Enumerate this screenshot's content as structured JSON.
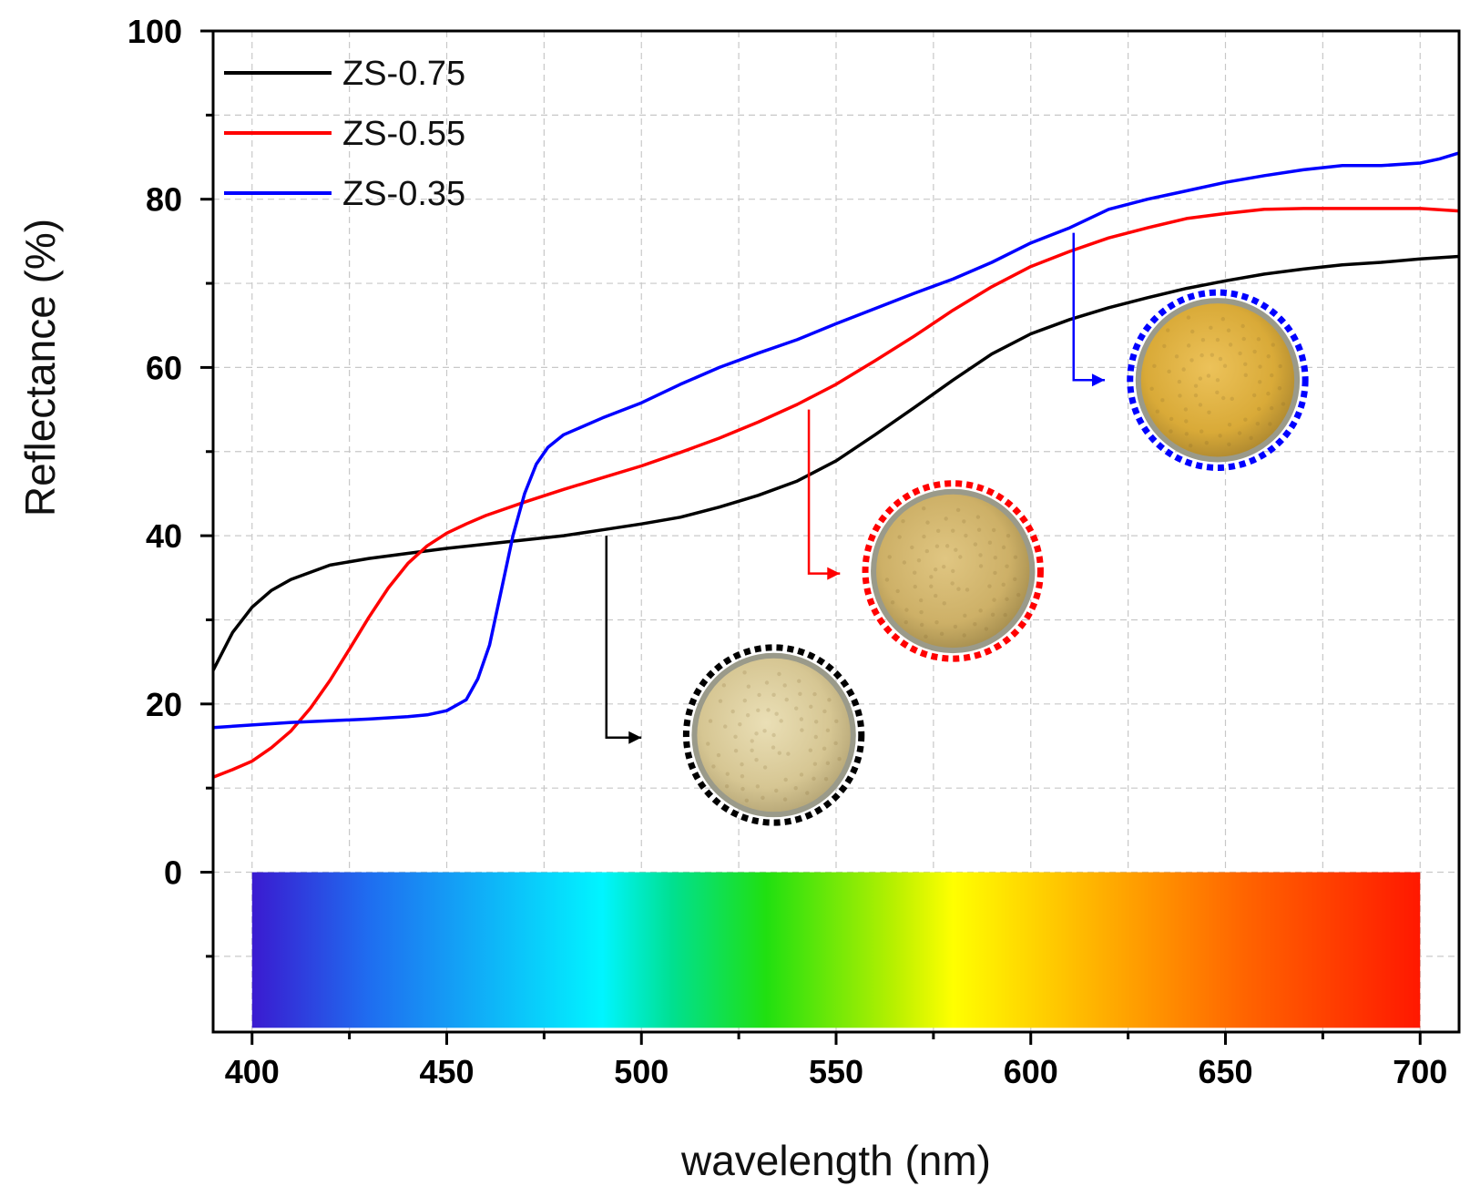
{
  "chart_data": {
    "type": "line",
    "xlabel": "wavelength (nm)",
    "ylabel": "Reflectance (%)",
    "xlim": [
      390,
      710
    ],
    "ylim": [
      -19,
      100
    ],
    "x_ticks": [
      400,
      450,
      500,
      550,
      600,
      650,
      700
    ],
    "y_ticks": [
      0,
      20,
      40,
      60,
      80,
      100
    ],
    "grid": true,
    "legend_position": "top-left",
    "spectrum_bar": {
      "x_range": [
        400,
        700
      ],
      "y_range": [
        -18.5,
        0
      ]
    },
    "series": [
      {
        "name": "ZS-0.75",
        "color": "#000000",
        "x": [
          390,
          395,
          400,
          405,
          410,
          420,
          430,
          440,
          450,
          460,
          470,
          480,
          490,
          500,
          510,
          520,
          530,
          540,
          550,
          560,
          570,
          580,
          590,
          600,
          610,
          620,
          630,
          640,
          650,
          660,
          670,
          680,
          690,
          700,
          710
        ],
        "y": [
          24,
          28.5,
          31.5,
          33.5,
          34.8,
          36.5,
          37.3,
          37.9,
          38.5,
          39,
          39.5,
          40,
          40.7,
          41.4,
          42.2,
          43.4,
          44.8,
          46.5,
          48.9,
          52,
          55.2,
          58.5,
          61.6,
          64,
          65.7,
          67.1,
          68.3,
          69.4,
          70.3,
          71.1,
          71.7,
          72.2,
          72.5,
          72.9,
          73.2
        ]
      },
      {
        "name": "ZS-0.55",
        "color": "#ff0000",
        "x": [
          390,
          395,
          400,
          405,
          410,
          415,
          420,
          425,
          430,
          435,
          440,
          445,
          450,
          455,
          460,
          470,
          480,
          490,
          500,
          510,
          520,
          530,
          540,
          550,
          560,
          570,
          580,
          590,
          600,
          610,
          620,
          630,
          640,
          650,
          660,
          670,
          680,
          690,
          700,
          710
        ],
        "y": [
          11.3,
          12.2,
          13.2,
          14.8,
          16.8,
          19.5,
          22.8,
          26.5,
          30.3,
          33.8,
          36.7,
          38.8,
          40.3,
          41.4,
          42.4,
          44,
          45.5,
          46.9,
          48.3,
          49.9,
          51.6,
          53.5,
          55.6,
          58,
          60.8,
          63.7,
          66.8,
          69.6,
          72,
          73.8,
          75.4,
          76.6,
          77.7,
          78.3,
          78.8,
          78.9,
          78.9,
          78.9,
          78.9,
          78.6
        ]
      },
      {
        "name": "ZS-0.35",
        "color": "#0000ff",
        "x": [
          390,
          400,
          410,
          420,
          430,
          440,
          445,
          450,
          455,
          458,
          461,
          464,
          467,
          470,
          473,
          476,
          480,
          490,
          500,
          510,
          520,
          530,
          540,
          550,
          560,
          570,
          580,
          590,
          600,
          610,
          620,
          630,
          640,
          650,
          660,
          670,
          680,
          690,
          700,
          705,
          710
        ],
        "y": [
          17.2,
          17.5,
          17.8,
          18,
          18.2,
          18.5,
          18.7,
          19.2,
          20.5,
          23,
          27,
          33.5,
          40,
          45,
          48.5,
          50.5,
          52,
          54,
          55.8,
          58,
          60,
          61.7,
          63.3,
          65.2,
          67,
          68.8,
          70.5,
          72.5,
          74.8,
          76.6,
          78.8,
          80,
          81,
          82,
          82.8,
          83.5,
          84,
          84,
          84.3,
          84.8,
          85.5
        ]
      }
    ],
    "annotations": [
      {
        "series": "ZS-0.75",
        "from": [
          491,
          40
        ],
        "corner": [
          491,
          16
        ],
        "to": [
          500,
          16
        ],
        "color": "#000000",
        "circle_center": [
          534,
          16.3
        ],
        "circle_radius_data_x": 22.5,
        "circle_fill": "#d8c89a"
      },
      {
        "series": "ZS-0.55",
        "from": [
          543,
          55
        ],
        "corner": [
          543,
          35.5
        ],
        "to": [
          551,
          35.5
        ],
        "color": "#ff0000",
        "circle_center": [
          580,
          35.8
        ],
        "circle_radius_data_x": 22.5,
        "circle_fill": "#cfb46c"
      },
      {
        "series": "ZS-0.35",
        "from": [
          611,
          76
        ],
        "corner": [
          611,
          58.5
        ],
        "to": [
          619,
          58.5
        ],
        "color": "#0000ff",
        "circle_center": [
          648,
          58.5
        ],
        "circle_radius_data_x": 22.5,
        "circle_fill": "#d9ae3e"
      }
    ]
  }
}
